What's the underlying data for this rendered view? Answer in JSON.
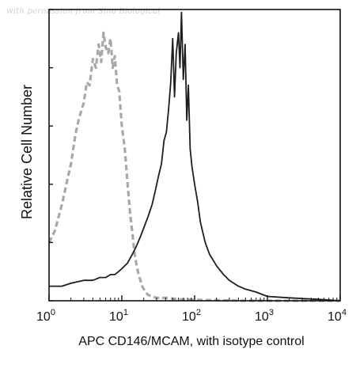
{
  "watermark": "with permission from Sino Biological",
  "chart_data": {
    "type": "histogram",
    "xlabel": "APC CD146/MCAM, with isotype control",
    "ylabel": "Relative Cell Number",
    "xscale": "log",
    "xlim": [
      1,
      10000
    ],
    "ylim": [
      0,
      100
    ],
    "xticks": [
      {
        "value": 1,
        "base": "10",
        "exp": "0"
      },
      {
        "value": 10,
        "base": "10",
        "exp": "1"
      },
      {
        "value": 100,
        "base": "10",
        "exp": "2"
      },
      {
        "value": 1000,
        "base": "10",
        "exp": "3"
      },
      {
        "value": 10000,
        "base": "10",
        "exp": "4"
      }
    ],
    "yticks": [
      0,
      20,
      40,
      60,
      80,
      100
    ],
    "grid": false,
    "series": [
      {
        "role": "isotype-control",
        "color": "#a8a8a8",
        "style": "dashed",
        "x": [
          1.0,
          1.2,
          1.5,
          1.8,
          2.0,
          2.3,
          2.6,
          3.0,
          3.3,
          3.6,
          4.0,
          4.4,
          4.8,
          5.2,
          5.6,
          6.0,
          6.5,
          7.0,
          7.5,
          8.0,
          8.6,
          9.2,
          10,
          11,
          12,
          13,
          14,
          15,
          16,
          17,
          18,
          19,
          20,
          21,
          23,
          26,
          30,
          40,
          60,
          100,
          200,
          500,
          1000,
          10000
        ],
        "y": [
          20,
          24,
          33,
          42,
          47,
          57,
          63,
          68,
          75,
          74,
          83,
          80,
          88,
          82,
          92,
          87,
          85,
          90,
          80,
          84,
          74,
          72,
          60,
          52,
          40,
          30,
          23,
          16,
          12,
          9,
          7,
          5,
          4,
          3,
          2,
          1.5,
          1,
          1,
          0.5,
          0.3,
          0.2,
          0,
          0,
          0
        ]
      },
      {
        "role": "CD146/MCAM",
        "color": "#1e1e1e",
        "style": "solid",
        "x": [
          1.0,
          1.5,
          2.0,
          3.0,
          4.0,
          5.0,
          6.0,
          7.0,
          8.0,
          9.0,
          10,
          12,
          14,
          16,
          18,
          20,
          23,
          26,
          29,
          32,
          35,
          38,
          41,
          44,
          47,
          50,
          53,
          56,
          60,
          63,
          66,
          70,
          74,
          78,
          82,
          87,
          92,
          100,
          110,
          120,
          140,
          160,
          200,
          250,
          300,
          400,
          500,
          700,
          1000,
          2000,
          5000,
          10000
        ],
        "y": [
          5,
          5,
          6,
          7,
          7,
          8,
          8,
          9,
          9,
          10,
          11,
          13,
          16,
          19,
          22,
          25,
          29,
          33,
          38,
          43,
          47,
          55,
          58,
          66,
          75,
          90,
          70,
          85,
          92,
          80,
          99,
          76,
          88,
          62,
          74,
          52,
          46,
          40,
          34,
          27,
          20,
          16,
          12,
          9,
          7,
          5,
          4,
          3,
          1.5,
          1,
          0.5,
          0
        ]
      }
    ]
  }
}
